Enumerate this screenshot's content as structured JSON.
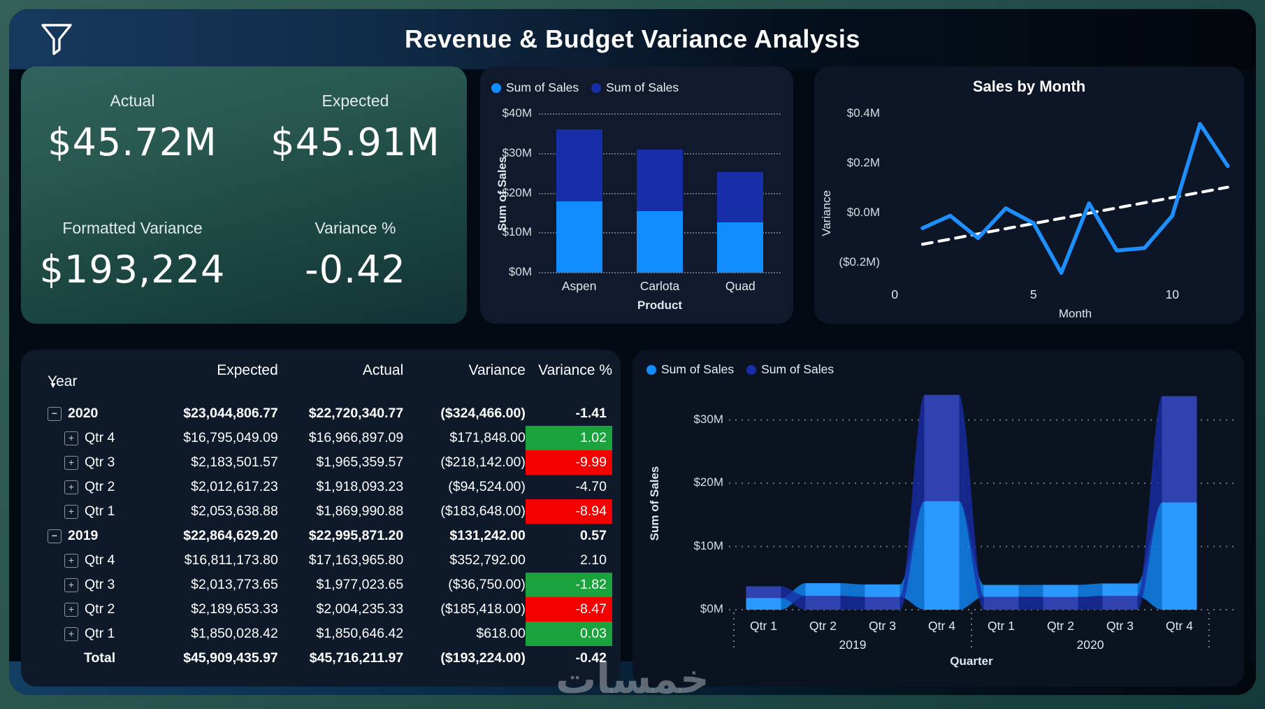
{
  "header": {
    "title": "Revenue & Budget Variance Analysis"
  },
  "icons": {
    "header": "filter-funnel-icon",
    "sort": "sort-descending-triangle",
    "collapse": "minus-box-icon",
    "expand": "plus-box-icon"
  },
  "colors": {
    "light_blue": "#118DFF",
    "dark_blue": "#182DA8",
    "green": "#1AA23C",
    "red": "#F50000",
    "card_teal": "#28584F",
    "trend": "#FFFFFF"
  },
  "kpi": {
    "actual_label": "Actual",
    "actual_value": "$45.72M",
    "expected_label": "Expected",
    "expected_value": "$45.91M",
    "variance_label": "Formatted Variance",
    "variance_value": "$193,224",
    "variance_pct_label": "Variance %",
    "variance_pct_value": "-0.42"
  },
  "chart_data": [
    {
      "type": "bar",
      "subtype": "stacked-column",
      "legend": [
        "Sum of Sales",
        "Sum of Sales"
      ],
      "categories": [
        "Aspen",
        "Carlota",
        "Quad"
      ],
      "series": [
        {
          "name": "Sum of Sales",
          "color": "#118DFF",
          "values": [
            17.9,
            15.5,
            12.6
          ]
        },
        {
          "name": "Sum of Sales",
          "color": "#182DA8",
          "values": [
            18.3,
            15.5,
            12.7
          ]
        }
      ],
      "xlabel": "Product",
      "ylabel": "Sum of Sales",
      "yticks": [
        "$0M",
        "$10M",
        "$20M",
        "$30M",
        "$40M"
      ],
      "ylim": [
        0,
        40
      ],
      "grid": "dotted"
    },
    {
      "type": "line",
      "title": "Sales by Month",
      "x": [
        1,
        2,
        3,
        4,
        5,
        6,
        7,
        8,
        9,
        10,
        11,
        12
      ],
      "values": [
        -0.06,
        -0.01,
        -0.1,
        0.02,
        -0.04,
        -0.24,
        0.04,
        -0.15,
        -0.14,
        -0.01,
        0.36,
        0.19
      ],
      "trend": {
        "start": -0.125,
        "end": 0.105,
        "style": "dashed-white"
      },
      "xlabel": "Month",
      "ylabel": "Variance",
      "yticks": [
        "$0.4M",
        "$0.2M",
        "$0.0M",
        "($0.2M)"
      ],
      "ytick_values": [
        0.4,
        0.2,
        0.0,
        -0.2
      ],
      "xticks": [
        0,
        5,
        10
      ],
      "ylim": [
        -0.3,
        0.45
      ],
      "xlim": [
        0,
        12.3
      ],
      "line_color": "#1E8FFF",
      "grid": "off"
    },
    {
      "type": "area",
      "subtype": "ribbon",
      "legend": [
        "Sum of Sales",
        "Sum of Sales"
      ],
      "categories": [
        "Qtr 1",
        "Qtr 2",
        "Qtr 3",
        "Qtr 4",
        "Qtr 1",
        "Qtr 2",
        "Qtr 3",
        "Qtr 4"
      ],
      "group_labels": [
        "2019",
        "2020"
      ],
      "series": [
        {
          "name": "Sum of Sales",
          "color": "#118DFF",
          "values": [
            1.85,
            2.0,
            1.98,
            17.16,
            1.87,
            1.92,
            1.97,
            16.97
          ]
        },
        {
          "name": "Sum of Sales",
          "color": "#182DA8",
          "values": [
            1.85,
            2.19,
            2.01,
            16.81,
            2.05,
            2.01,
            2.18,
            16.8
          ]
        }
      ],
      "light_on_top": [
        false,
        true,
        true,
        false,
        true,
        true,
        true,
        false
      ],
      "xlabel": "Quarter",
      "ylabel": "Sum of Sales",
      "yticks": [
        "$0M",
        "$10M",
        "$20M",
        "$30M"
      ],
      "ylim": [
        0,
        34.5
      ],
      "grid": "dotted"
    }
  ],
  "table": {
    "columns": [
      "Year",
      "Expected",
      "Actual",
      "Variance",
      "Variance %"
    ],
    "sort_column": "Year",
    "rows": [
      {
        "level": "year",
        "toggle": "collapse",
        "label": "2020",
        "expected": "$23,044,806.77",
        "actual": "$22,720,340.77",
        "variance": "($324,466.00)",
        "pct": "-1.41",
        "flag": null
      },
      {
        "level": "qtr",
        "toggle": "expand",
        "label": "Qtr 4",
        "expected": "$16,795,049.09",
        "actual": "$16,966,897.09",
        "variance": "$171,848.00",
        "pct": "1.02",
        "flag": "green"
      },
      {
        "level": "qtr",
        "toggle": "expand",
        "label": "Qtr 3",
        "expected": "$2,183,501.57",
        "actual": "$1,965,359.57",
        "variance": "($218,142.00)",
        "pct": "-9.99",
        "flag": "red"
      },
      {
        "level": "qtr",
        "toggle": "expand",
        "label": "Qtr 2",
        "expected": "$2,012,617.23",
        "actual": "$1,918,093.23",
        "variance": "($94,524.00)",
        "pct": "-4.70",
        "flag": null
      },
      {
        "level": "qtr",
        "toggle": "expand",
        "label": "Qtr 1",
        "expected": "$2,053,638.88",
        "actual": "$1,869,990.88",
        "variance": "($183,648.00)",
        "pct": "-8.94",
        "flag": "red"
      },
      {
        "level": "year",
        "toggle": "collapse",
        "label": "2019",
        "expected": "$22,864,629.20",
        "actual": "$22,995,871.20",
        "variance": "$131,242.00",
        "pct": "0.57",
        "flag": null
      },
      {
        "level": "qtr",
        "toggle": "expand",
        "label": "Qtr 4",
        "expected": "$16,811,173.80",
        "actual": "$17,163,965.80",
        "variance": "$352,792.00",
        "pct": "2.10",
        "flag": null
      },
      {
        "level": "qtr",
        "toggle": "expand",
        "label": "Qtr 3",
        "expected": "$2,013,773.65",
        "actual": "$1,977,023.65",
        "variance": "($36,750.00)",
        "pct": "-1.82",
        "flag": "green"
      },
      {
        "level": "qtr",
        "toggle": "expand",
        "label": "Qtr 2",
        "expected": "$2,189,653.33",
        "actual": "$2,004,235.33",
        "variance": "($185,418.00)",
        "pct": "-8.47",
        "flag": "red"
      },
      {
        "level": "qtr",
        "toggle": "expand",
        "label": "Qtr 1",
        "expected": "$1,850,028.42",
        "actual": "$1,850,646.42",
        "variance": "$618.00",
        "pct": "0.03",
        "flag": "green"
      },
      {
        "level": "total",
        "toggle": null,
        "label": "Total",
        "expected": "$45,909,435.97",
        "actual": "$45,716,211.97",
        "variance": "($193,224.00)",
        "pct": "-0.42",
        "flag": null
      }
    ]
  },
  "watermark": "خمسات"
}
